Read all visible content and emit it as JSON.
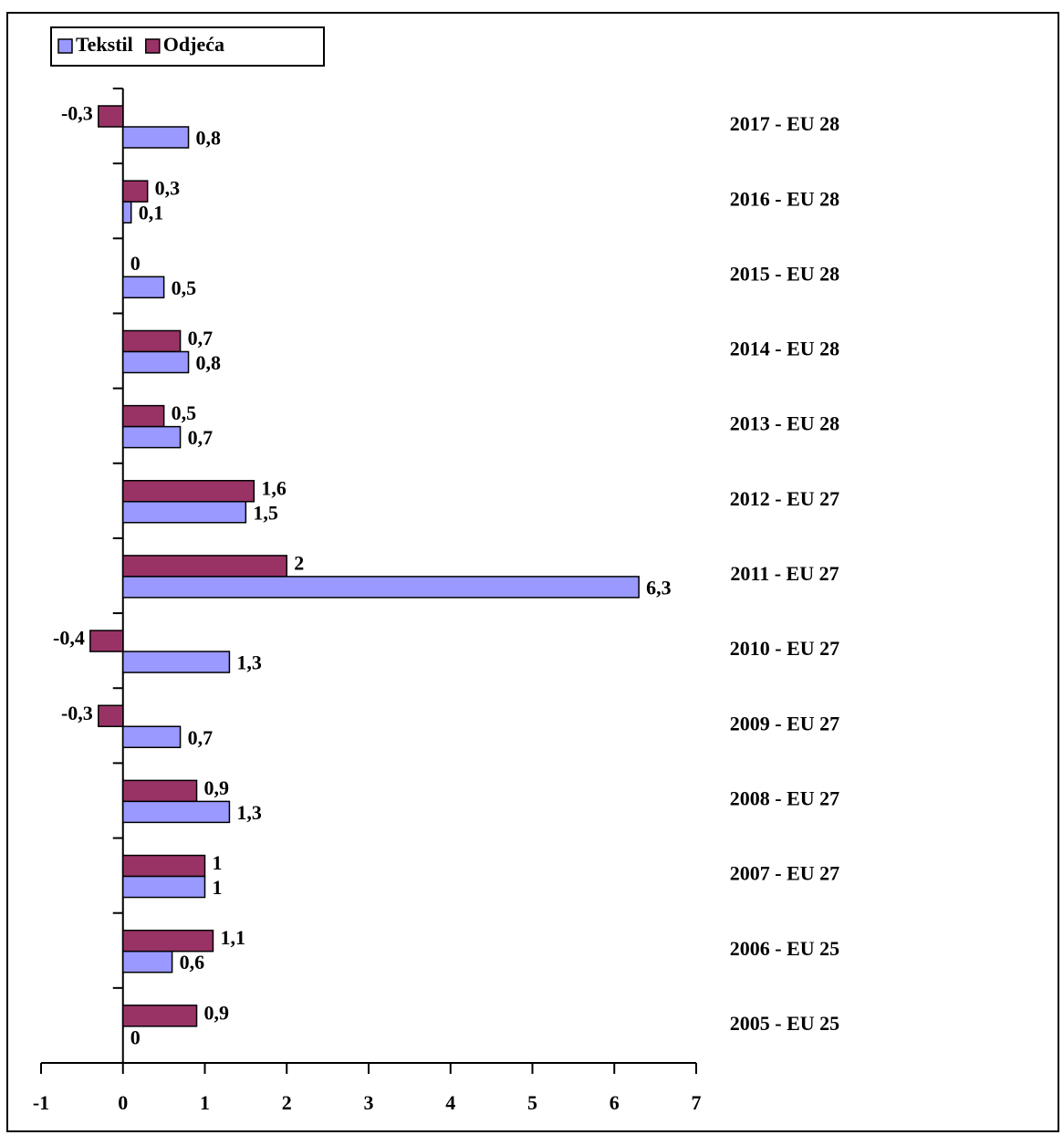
{
  "chart_data": {
    "type": "hbar",
    "categories": [
      "2017 - EU 28",
      "2016 - EU 28",
      "2015 - EU 28",
      "2014 - EU 28",
      "2013 - EU 28",
      "2012 - EU 27",
      "2011 - EU 27",
      "2010 - EU 27",
      "2009 - EU 27",
      "2008 - EU 27",
      "2007 - EU 27",
      "2006 - EU 25",
      "2005 - EU 25"
    ],
    "series": [
      {
        "name": "Tekstil",
        "color": "#9999ff",
        "values": [
          0.8,
          0.1,
          0.5,
          0.8,
          0.7,
          1.5,
          6.3,
          1.3,
          0.7,
          1.3,
          1,
          0.6,
          0
        ],
        "value_labels": [
          "0,8",
          "0,1",
          "0,5",
          "0,8",
          "0,7",
          "1,5",
          "6,3",
          "1,3",
          "0,7",
          "1,3",
          "1",
          "0,6",
          "0"
        ]
      },
      {
        "name": "Odjeća",
        "color": "#993366",
        "values": [
          -0.3,
          0.3,
          0,
          0.7,
          0.5,
          1.6,
          2,
          -0.4,
          -0.3,
          0.9,
          1,
          1.1,
          0.9
        ],
        "value_labels": [
          "-0,3",
          "0,3",
          "0",
          "0,7",
          "0,5",
          "1,6",
          "2",
          "-0,4",
          "-0,3",
          "0,9",
          "1",
          "1,1",
          "0,9"
        ]
      }
    ],
    "xlim": [
      -1,
      7
    ],
    "xticks": [
      -1,
      0,
      1,
      2,
      3,
      4,
      5,
      6,
      7
    ],
    "legend": "top-left",
    "grid": false
  }
}
